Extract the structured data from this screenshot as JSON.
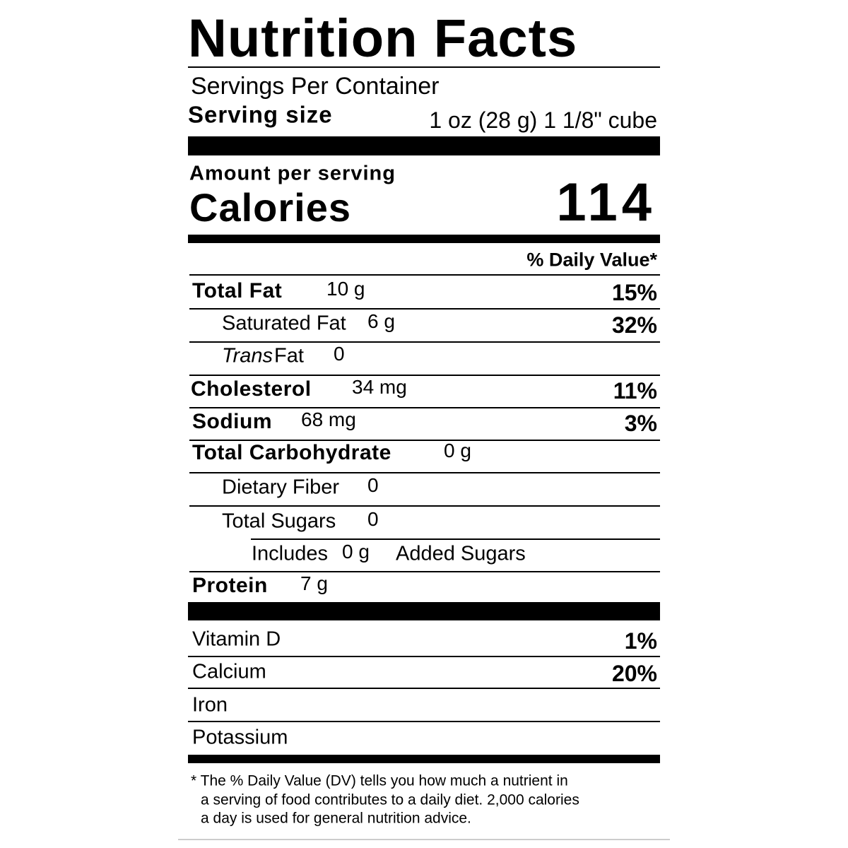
{
  "title": "Nutrition Facts",
  "servings_per_container": "Servings Per Container",
  "serving_size": {
    "label": "Serving size",
    "value": "1 oz (28 g) 1 1/8\" cube"
  },
  "amount_per_serving": "Amount per serving",
  "calories": {
    "label": "Calories",
    "value": "114"
  },
  "daily_value_header": "% Daily Value*",
  "nutrients": [
    {
      "name": "Total Fat",
      "amount": "10 g",
      "dv": "15%"
    },
    {
      "name": "Saturated Fat",
      "amount": "6 g",
      "dv": "32%"
    },
    {
      "name_italic": "Trans",
      "name": "Fat",
      "amount": "0"
    },
    {
      "name": "Cholesterol",
      "amount": "34 mg",
      "dv": "11%"
    },
    {
      "name": "Sodium",
      "amount": "68 mg",
      "dv": "3%"
    },
    {
      "name": "Total Carbohydrate",
      "amount": "0 g"
    },
    {
      "name": "Dietary Fiber",
      "amount": "0"
    },
    {
      "name": "Total Sugars",
      "amount": "0"
    },
    {
      "name": "Includes",
      "amount": "0 g",
      "suffix": "Added Sugars"
    },
    {
      "name": "Protein",
      "amount": "7 g"
    }
  ],
  "vitamins": [
    {
      "name": "Vitamin D",
      "dv": "1%"
    },
    {
      "name": "Calcium",
      "dv": "20%"
    },
    {
      "name": "Iron"
    },
    {
      "name": "Potassium"
    }
  ],
  "footnote": [
    "* The % Daily Value (DV) tells you how much a nutrient in",
    "a serving of food contributes to a daily diet. 2,000 calories",
    "a day is used for general nutrition advice."
  ]
}
